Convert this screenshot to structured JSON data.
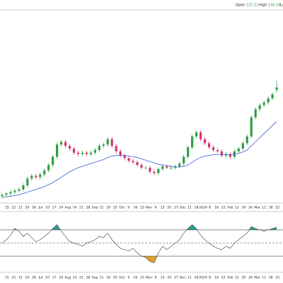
{
  "chart_data": [
    {
      "type": "candlestick",
      "header": {
        "open_label": "Open",
        "high_label": "High",
        "low_label": "Lo"
      },
      "open": [
        59,
        60,
        61,
        62,
        63,
        64,
        67,
        72,
        74,
        73,
        75,
        78,
        82,
        88,
        97,
        99,
        96,
        94,
        91,
        90,
        91,
        90,
        91,
        93,
        96,
        97,
        101,
        96,
        92,
        89,
        87,
        85,
        84,
        82,
        80,
        80,
        77,
        76,
        79,
        81,
        80,
        80,
        81,
        83,
        88,
        95,
        103,
        106,
        101,
        98,
        95,
        93,
        92,
        89,
        90,
        88,
        92,
        94,
        98,
        103,
        117,
        123,
        126,
        128,
        131,
        137.22
      ],
      "high": [
        61.5,
        62.5,
        63.5,
        64.5,
        65.5,
        68.5,
        73.5,
        75.5,
        75.5,
        76.5,
        79.5,
        83.5,
        89.5,
        98.5,
        100.5,
        100.5,
        97.5,
        95.5,
        92.5,
        92.5,
        92.5,
        92.5,
        94.5,
        97.5,
        98.5,
        102.5,
        102.5,
        97.5,
        93.5,
        90.5,
        88.5,
        86.5,
        85.5,
        83.5,
        81.5,
        81.5,
        78.5,
        80.5,
        82.5,
        82.5,
        81.5,
        82.5,
        84.5,
        89.5,
        96.5,
        104.5,
        107.5,
        107.5,
        102.5,
        99.5,
        96.5,
        94.5,
        93.5,
        91.5,
        91.5,
        93.5,
        95.5,
        99.5,
        104.5,
        118.5,
        124.5,
        127.5,
        129.5,
        132.5,
        135.5,
        144.28
      ],
      "low": [
        57.5,
        58.5,
        59.5,
        60.5,
        61.5,
        62.5,
        65.5,
        70.5,
        71.5,
        71.5,
        73.5,
        76.5,
        80.5,
        86.5,
        95.5,
        94.5,
        92.5,
        89.5,
        88.5,
        88.5,
        88.5,
        88.5,
        89.5,
        91.5,
        94.5,
        95.5,
        94.5,
        90.5,
        87.5,
        85.5,
        83.5,
        82.5,
        80.5,
        78.5,
        78.5,
        75.5,
        74.5,
        74.5,
        77.5,
        78.5,
        78.5,
        78.5,
        79.5,
        81.5,
        86.5,
        93.5,
        101.5,
        99.5,
        96.5,
        93.5,
        91.5,
        90.5,
        87.5,
        87.5,
        86.5,
        86.5,
        90.5,
        92.5,
        96.5,
        101.5,
        115.5,
        121.5,
        124.5,
        126.5,
        129.5,
        135
      ],
      "close": [
        60,
        61,
        62,
        63,
        64,
        67,
        72,
        74,
        73,
        75,
        78,
        82,
        88,
        97,
        99,
        96,
        94,
        91,
        90,
        91,
        90,
        91,
        93,
        96,
        97,
        101,
        96,
        92,
        89,
        87,
        85,
        84,
        82,
        80,
        80,
        77,
        76,
        79,
        81,
        80,
        80,
        81,
        83,
        88,
        95,
        103,
        106,
        101,
        98,
        95,
        93,
        92,
        89,
        90,
        88,
        92,
        94,
        98,
        103,
        117,
        123,
        126,
        128,
        131,
        134,
        139
      ],
      "up_color": "#2f9e44",
      "down_color": "#d6336c",
      "ma": {
        "values": [
          58,
          58.5,
          59,
          59.5,
          60,
          61,
          62,
          63,
          64,
          65,
          66,
          67.5,
          69,
          71,
          73,
          75,
          77,
          78.5,
          80,
          81,
          82,
          83,
          84,
          85,
          86,
          87.5,
          88.5,
          89,
          89,
          89,
          88.5,
          88,
          87.5,
          86.5,
          85.5,
          84.5,
          83.5,
          82.5,
          82,
          81.5,
          81,
          80.5,
          80.5,
          81,
          82,
          84,
          86,
          87.5,
          88.5,
          89,
          89.5,
          89.5,
          89.5,
          89.5,
          89.5,
          90,
          90.5,
          91.5,
          93,
          96,
          99,
          102,
          105,
          108,
          111,
          114
        ],
        "color": "#3b5bdb"
      },
      "ylim": [
        55,
        194
      ],
      "x_labels": [
        "15",
        "22",
        "12",
        "20",
        "26",
        "Jul",
        "10",
        "17",
        "24",
        "Aug",
        "14",
        "21",
        "28",
        "Sep",
        "11",
        "18",
        "25",
        "Oct",
        "9",
        "16",
        "23",
        "Nov",
        "6",
        "13",
        "20",
        "27",
        "Dec",
        "11",
        "18",
        "2024",
        "8",
        "16",
        "22",
        "Feb",
        "12",
        "20",
        "26",
        "Mar",
        "11",
        "18",
        "25"
      ]
    },
    {
      "type": "oscillator",
      "values": [
        50,
        55,
        62,
        72,
        68,
        60,
        65,
        58,
        52,
        55,
        60,
        65,
        72,
        78,
        68,
        60,
        52,
        50,
        48,
        45,
        50,
        52,
        55,
        60,
        58,
        65,
        55,
        48,
        42,
        40,
        38,
        42,
        35,
        30,
        28,
        22,
        20,
        35,
        45,
        40,
        45,
        50,
        55,
        65,
        72,
        78,
        72,
        62,
        55,
        50,
        45,
        42,
        40,
        45,
        42,
        50,
        55,
        60,
        65,
        75,
        72,
        70,
        68,
        70,
        72,
        74
      ],
      "color": "#555555",
      "ylim": [
        0,
        100
      ],
      "levels": [
        70,
        50,
        30
      ],
      "upper_fill": "#2a9d8f",
      "lower_fill": "#e0a030"
    }
  ]
}
